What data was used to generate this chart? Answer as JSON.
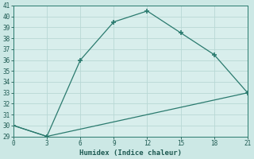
{
  "line1_x": [
    0,
    3,
    6,
    9,
    12,
    15,
    18,
    21
  ],
  "line1_y": [
    30,
    29,
    36,
    39.5,
    40.5,
    38.5,
    36.5,
    33
  ],
  "line2_x": [
    0,
    3,
    21
  ],
  "line2_y": [
    30,
    29,
    33
  ],
  "line_color": "#2a7a6e",
  "marker": "P",
  "marker_size": 3.5,
  "bg_color": "#cce8e5",
  "plot_bg_color": "#d8eeec",
  "grid_color": "#b8d8d5",
  "xlabel": "Humidex (Indice chaleur)",
  "xlim": [
    0,
    21
  ],
  "ylim": [
    29,
    41
  ],
  "xticks": [
    0,
    3,
    6,
    9,
    12,
    15,
    18,
    21
  ],
  "yticks": [
    29,
    30,
    31,
    32,
    33,
    34,
    35,
    36,
    37,
    38,
    39,
    40,
    41
  ]
}
